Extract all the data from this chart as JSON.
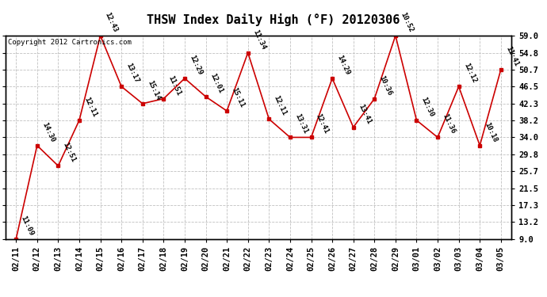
{
  "title": "THSW Index Daily High (°F) 20120306",
  "copyright": "Copyright 2012 Cartronics.com",
  "dates": [
    "02/11",
    "02/12",
    "02/13",
    "02/14",
    "02/15",
    "02/16",
    "02/17",
    "02/18",
    "02/19",
    "02/20",
    "02/21",
    "02/22",
    "02/23",
    "02/24",
    "02/25",
    "02/26",
    "02/27",
    "02/28",
    "02/29",
    "03/01",
    "03/02",
    "03/03",
    "03/04",
    "03/05"
  ],
  "values": [
    9.0,
    32.0,
    27.0,
    38.2,
    59.0,
    46.5,
    42.3,
    43.5,
    48.5,
    44.0,
    40.5,
    54.8,
    38.5,
    34.0,
    34.0,
    48.5,
    36.5,
    43.5,
    59.0,
    38.2,
    34.0,
    46.5,
    32.0,
    50.7
  ],
  "labels": [
    "11:09",
    "14:30",
    "12:51",
    "12:11",
    "12:43",
    "13:17",
    "15:14",
    "11:51",
    "12:29",
    "12:01",
    "15:11",
    "11:34",
    "12:11",
    "13:31",
    "12:41",
    "14:29",
    "13:41",
    "10:36",
    "10:52",
    "12:30",
    "11:36",
    "12:12",
    "10:18",
    "11:41"
  ],
  "line_color": "#cc0000",
  "marker_color": "#cc0000",
  "background_color": "#ffffff",
  "grid_color": "#c0c0c0",
  "yticks": [
    9.0,
    13.2,
    17.3,
    21.5,
    25.7,
    29.8,
    34.0,
    38.2,
    42.3,
    46.5,
    50.7,
    54.8,
    59.0
  ],
  "ylim": [
    9.0,
    59.0
  ],
  "title_fontsize": 11,
  "label_fontsize": 6.5,
  "tick_fontsize": 7.5,
  "copyright_fontsize": 6.5
}
